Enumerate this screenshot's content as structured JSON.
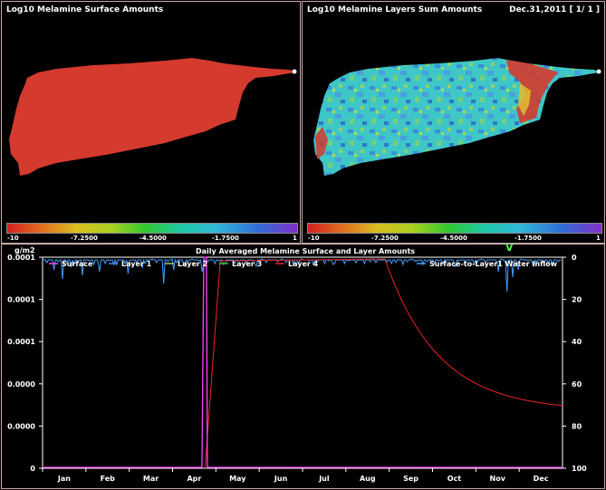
{
  "left_map": {
    "title": "Log10 Melamine Surface Amounts",
    "colorbar_labels": [
      "-10",
      "-7.2500",
      "-4.5000",
      "-1.7500",
      "1"
    ]
  },
  "right_map": {
    "title": "Log10 Melamine Layers Sum Amounts",
    "date_label": "Dec.31,2011 [ 1/ 1 ]",
    "colorbar_labels": [
      "-10",
      "-7.2500",
      "-4.5000",
      "-1.7500",
      "1"
    ]
  },
  "colors": {
    "surface_fill": "#d43a2e",
    "layer_fill": "#3fc6c6",
    "panel_border": "#c9a9a9"
  },
  "chart_data": {
    "type": "line",
    "title": "Daily Averaged Melamine Surface and Layer Amounts",
    "ylabel": "g/m2",
    "y_tick_labels": [
      "0.0001",
      "0.0001",
      "0.0001",
      "0.0000",
      "0.0000",
      "0"
    ],
    "y2_tick_labels": [
      "0",
      "20",
      "40",
      "60",
      "80",
      "100"
    ],
    "x_tick_labels": [
      "Jan",
      "Feb",
      "Mar",
      "Apr",
      "May",
      "Jun",
      "Jul",
      "Aug",
      "Sep",
      "Oct",
      "Nov",
      "Dec"
    ],
    "marker_label": "V",
    "series": [
      {
        "name": "Surface",
        "color": "#ff44ff"
      },
      {
        "name": "Layer 1",
        "color": "#4488ff"
      },
      {
        "name": "Layer 2",
        "color": "#aacc33"
      },
      {
        "name": "Layer 3",
        "color": "#33cc33"
      },
      {
        "name": "Layer 4",
        "color": "#ee2222"
      },
      {
        "name": "Surface-to-Layer1 Water Inflow",
        "color": "#3fa0ff"
      }
    ]
  }
}
